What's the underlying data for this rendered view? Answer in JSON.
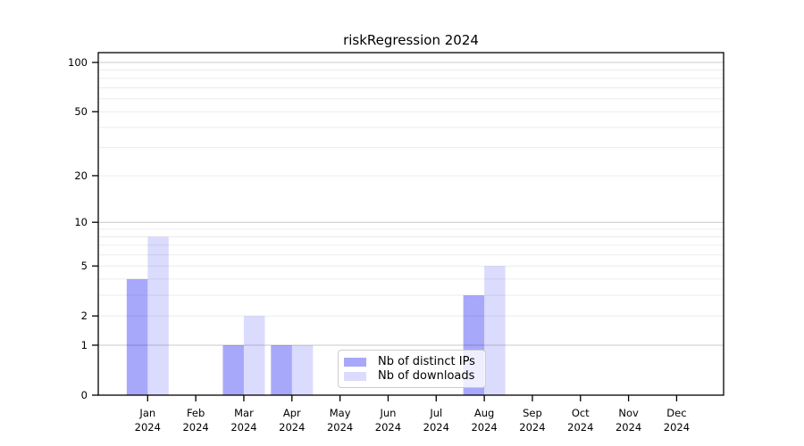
{
  "chart_data": {
    "type": "bar",
    "title": "riskRegression 2024",
    "x_categories": [
      {
        "month": "Jan",
        "year": "2024"
      },
      {
        "month": "Feb",
        "year": "2024"
      },
      {
        "month": "Mar",
        "year": "2024"
      },
      {
        "month": "Apr",
        "year": "2024"
      },
      {
        "month": "May",
        "year": "2024"
      },
      {
        "month": "Jun",
        "year": "2024"
      },
      {
        "month": "Jul",
        "year": "2024"
      },
      {
        "month": "Aug",
        "year": "2024"
      },
      {
        "month": "Sep",
        "year": "2024"
      },
      {
        "month": "Oct",
        "year": "2024"
      },
      {
        "month": "Nov",
        "year": "2024"
      },
      {
        "month": "Dec",
        "year": "2024"
      }
    ],
    "series": [
      {
        "name": "Nb of distinct IPs",
        "color": "#0000f0",
        "alpha": 0.34,
        "values": [
          4,
          0,
          1,
          1,
          0,
          0,
          0,
          3,
          0,
          0,
          0,
          0
        ]
      },
      {
        "name": "Nb of downloads",
        "color": "#0000f0",
        "alpha": 0.14,
        "values": [
          8,
          0,
          2,
          1,
          0,
          0,
          0,
          5,
          0,
          0,
          0,
          0
        ]
      }
    ],
    "y_axis": {
      "scale": "log1p",
      "tick_values": [
        0,
        1,
        2,
        5,
        10,
        20,
        50,
        100
      ],
      "ylim": [
        0,
        115
      ],
      "major_grid_values": [
        1,
        10,
        100
      ],
      "minor_grid_values": [
        2,
        3,
        4,
        5,
        6,
        7,
        8,
        9,
        20,
        30,
        40,
        50,
        60,
        70,
        80,
        90
      ]
    },
    "grid": true,
    "legend_position": "lower center"
  },
  "colors": {
    "background": "#ffffff",
    "axis": "#000000",
    "major_grid": "#c9c9c9",
    "minor_grid": "#ececec",
    "legend_border": "#cccccc",
    "text": "#000000"
  }
}
